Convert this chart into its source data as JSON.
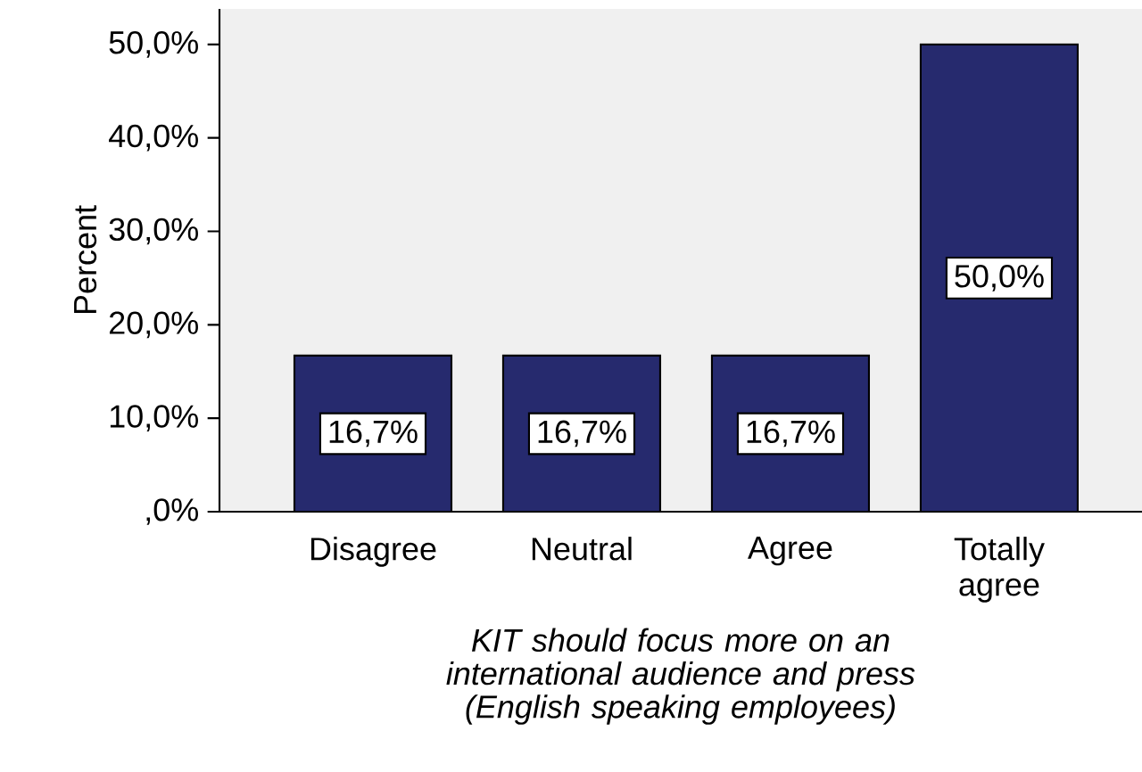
{
  "chart_data": {
    "type": "bar",
    "xlabel": "KIT should focus more on an international audience and press (English speaking employees)",
    "ylabel": "Percent",
    "categories": [
      "Disagree",
      "Neutral",
      "Agree",
      "Totally agree"
    ],
    "values": [
      16.7,
      16.7,
      16.7,
      50.0
    ],
    "value_labels": [
      "16,7%",
      "16,7%",
      "16,7%",
      "50,0%"
    ],
    "color": "#262a6e",
    "ylim": [
      0,
      53.8
    ],
    "yticks": [
      {
        "value": 0,
        "label": ",0%"
      },
      {
        "value": 10,
        "label": "10,0%"
      },
      {
        "value": 20,
        "label": "20,0%"
      },
      {
        "value": 30,
        "label": "30,0%"
      },
      {
        "value": 40,
        "label": "40,0%"
      },
      {
        "value": 50,
        "label": "50,0%"
      }
    ]
  }
}
